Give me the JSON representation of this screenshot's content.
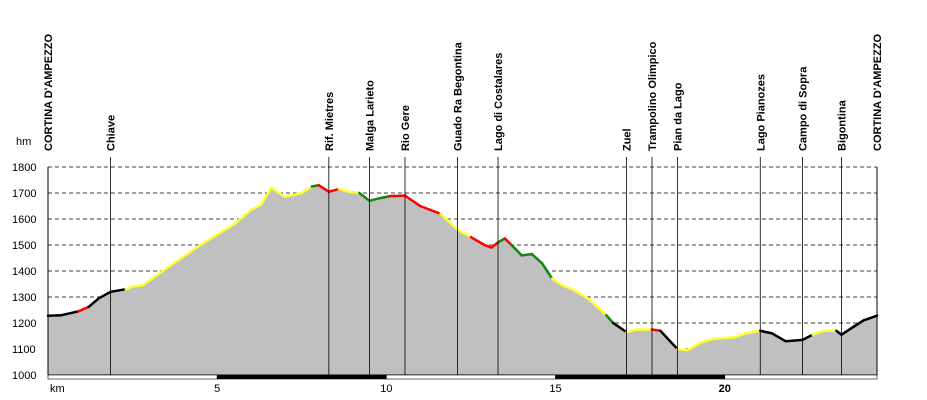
{
  "chart_data": {
    "type": "area",
    "yunit": "hm",
    "xunit": "km",
    "xlim": [
      0,
      24.5
    ],
    "ylim": [
      1000,
      1800
    ],
    "yticks": [
      1000,
      1100,
      1200,
      1300,
      1400,
      1500,
      1600,
      1700,
      1800
    ],
    "xticks": [
      5,
      10,
      15,
      20
    ],
    "grid": true,
    "fill_color": "#c0c0c0",
    "slope_colors": {
      "black": "#000000",
      "yellow": "#ffff33",
      "red": "#ff0000",
      "green": "#118811"
    },
    "waypoints": [
      {
        "name": "CORTINA D'AMPEZZO",
        "km": 0
      },
      {
        "name": "Chiave",
        "km": 1.85
      },
      {
        "name": "Rif. Mietres",
        "km": 8.3
      },
      {
        "name": "Malga Larieto",
        "km": 9.5
      },
      {
        "name": "Rio Gere",
        "km": 10.55
      },
      {
        "name": "Guado Ra Begontina",
        "km": 12.1
      },
      {
        "name": "Lago di Costalares",
        "km": 13.3
      },
      {
        "name": "Zuel",
        "km": 17.1
      },
      {
        "name": "Trampolino Olimpico",
        "km": 17.85
      },
      {
        "name": "Pian da Lago",
        "km": 18.6
      },
      {
        "name": "Lago Pianozes",
        "km": 21.05
      },
      {
        "name": "Campo di Sopra",
        "km": 22.3
      },
      {
        "name": "Bigontina",
        "km": 23.45
      },
      {
        "name": "CORTINA D'AMPEZZO",
        "km": 24.5
      }
    ],
    "profile": [
      {
        "km": 0.0,
        "alt": 1228,
        "c": "black"
      },
      {
        "km": 0.4,
        "alt": 1230,
        "c": "black"
      },
      {
        "km": 0.9,
        "alt": 1245,
        "c": "black"
      },
      {
        "km": 1.2,
        "alt": 1262,
        "c": "red"
      },
      {
        "km": 1.5,
        "alt": 1295,
        "c": "black"
      },
      {
        "km": 1.85,
        "alt": 1320,
        "c": "black"
      },
      {
        "km": 2.3,
        "alt": 1330,
        "c": "black"
      },
      {
        "km": 2.5,
        "alt": 1340,
        "c": "yellow"
      },
      {
        "km": 2.8,
        "alt": 1345,
        "c": "yellow"
      },
      {
        "km": 3.5,
        "alt": 1410,
        "c": "yellow"
      },
      {
        "km": 4.5,
        "alt": 1500,
        "c": "yellow"
      },
      {
        "km": 5.5,
        "alt": 1580,
        "c": "yellow"
      },
      {
        "km": 6.0,
        "alt": 1635,
        "c": "yellow"
      },
      {
        "km": 6.3,
        "alt": 1655,
        "c": "yellow"
      },
      {
        "km": 6.6,
        "alt": 1720,
        "c": "yellow"
      },
      {
        "km": 7.0,
        "alt": 1685,
        "c": "yellow"
      },
      {
        "km": 7.5,
        "alt": 1700,
        "c": "yellow"
      },
      {
        "km": 7.8,
        "alt": 1725,
        "c": "yellow"
      },
      {
        "km": 8.0,
        "alt": 1730,
        "c": "green"
      },
      {
        "km": 8.3,
        "alt": 1705,
        "c": "red"
      },
      {
        "km": 8.6,
        "alt": 1715,
        "c": "red"
      },
      {
        "km": 8.9,
        "alt": 1705,
        "c": "yellow"
      },
      {
        "km": 9.2,
        "alt": 1700,
        "c": "yellow"
      },
      {
        "km": 9.5,
        "alt": 1670,
        "c": "green"
      },
      {
        "km": 9.8,
        "alt": 1680,
        "c": "green"
      },
      {
        "km": 10.1,
        "alt": 1688,
        "c": "green"
      },
      {
        "km": 10.55,
        "alt": 1690,
        "c": "red"
      },
      {
        "km": 11.0,
        "alt": 1650,
        "c": "red"
      },
      {
        "km": 11.6,
        "alt": 1620,
        "c": "red"
      },
      {
        "km": 12.1,
        "alt": 1560,
        "c": "yellow"
      },
      {
        "km": 12.5,
        "alt": 1530,
        "c": "yellow"
      },
      {
        "km": 12.9,
        "alt": 1500,
        "c": "red"
      },
      {
        "km": 13.1,
        "alt": 1490,
        "c": "red"
      },
      {
        "km": 13.3,
        "alt": 1510,
        "c": "red"
      },
      {
        "km": 13.5,
        "alt": 1525,
        "c": "green"
      },
      {
        "km": 13.7,
        "alt": 1500,
        "c": "red"
      },
      {
        "km": 14.0,
        "alt": 1460,
        "c": "green"
      },
      {
        "km": 14.3,
        "alt": 1465,
        "c": "green"
      },
      {
        "km": 14.6,
        "alt": 1430,
        "c": "green"
      },
      {
        "km": 14.9,
        "alt": 1370,
        "c": "green"
      },
      {
        "km": 15.2,
        "alt": 1345,
        "c": "yellow"
      },
      {
        "km": 15.5,
        "alt": 1330,
        "c": "yellow"
      },
      {
        "km": 16.0,
        "alt": 1290,
        "c": "yellow"
      },
      {
        "km": 16.5,
        "alt": 1230,
        "c": "yellow"
      },
      {
        "km": 16.7,
        "alt": 1200,
        "c": "green"
      },
      {
        "km": 17.1,
        "alt": 1165,
        "c": "black"
      },
      {
        "km": 17.4,
        "alt": 1175,
        "c": "yellow"
      },
      {
        "km": 17.85,
        "alt": 1175,
        "c": "yellow"
      },
      {
        "km": 18.1,
        "alt": 1170,
        "c": "red"
      },
      {
        "km": 18.6,
        "alt": 1100,
        "c": "black"
      },
      {
        "km": 18.9,
        "alt": 1095,
        "c": "yellow"
      },
      {
        "km": 19.3,
        "alt": 1125,
        "c": "yellow"
      },
      {
        "km": 19.7,
        "alt": 1140,
        "c": "yellow"
      },
      {
        "km": 20.3,
        "alt": 1145,
        "c": "yellow"
      },
      {
        "km": 20.6,
        "alt": 1160,
        "c": "yellow"
      },
      {
        "km": 21.05,
        "alt": 1170,
        "c": "yellow"
      },
      {
        "km": 21.4,
        "alt": 1160,
        "c": "black"
      },
      {
        "km": 21.8,
        "alt": 1130,
        "c": "black"
      },
      {
        "km": 22.3,
        "alt": 1135,
        "c": "black"
      },
      {
        "km": 22.6,
        "alt": 1155,
        "c": "black"
      },
      {
        "km": 22.9,
        "alt": 1170,
        "c": "yellow"
      },
      {
        "km": 23.3,
        "alt": 1170,
        "c": "yellow"
      },
      {
        "km": 23.45,
        "alt": 1155,
        "c": "black"
      },
      {
        "km": 23.8,
        "alt": 1185,
        "c": "black"
      },
      {
        "km": 24.1,
        "alt": 1210,
        "c": "black"
      },
      {
        "km": 24.5,
        "alt": 1228,
        "c": "black"
      }
    ]
  }
}
